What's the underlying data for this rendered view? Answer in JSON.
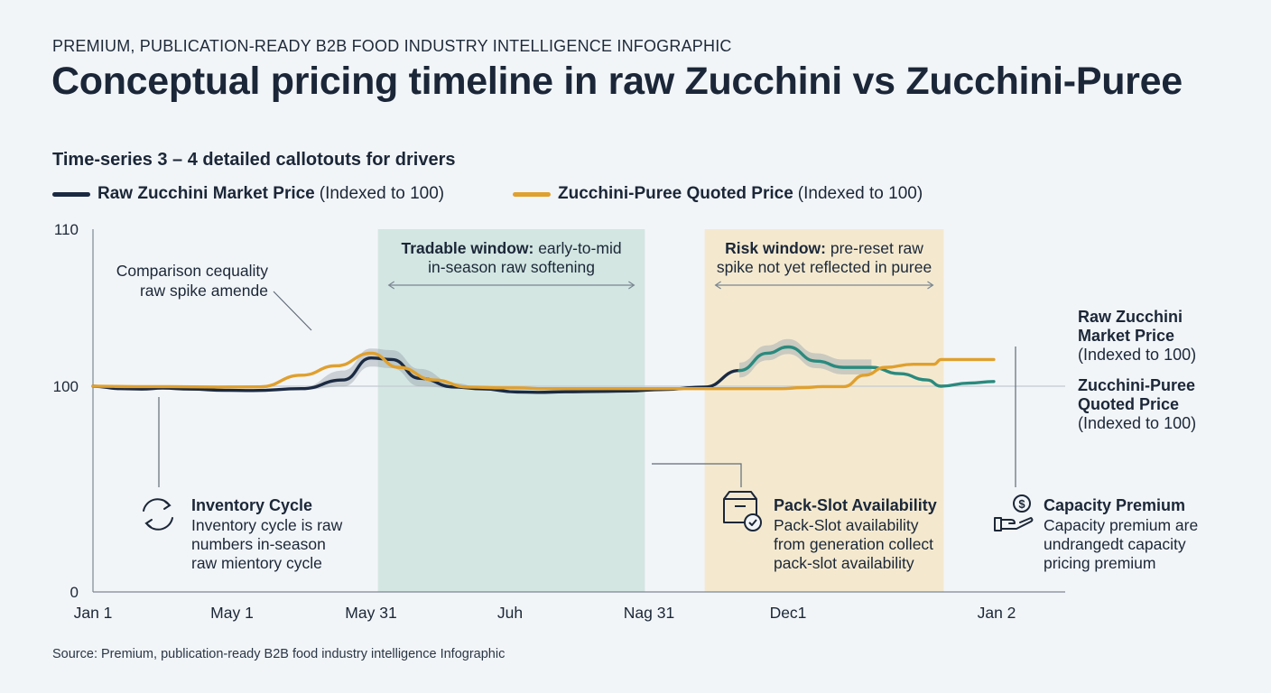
{
  "kicker": "PREMIUM, PUBLICATION-READY B2B FOOD INDUSTRY INTELLIGENCE INFOGRAPHIC",
  "title": "Conceptual pricing timeline in raw Zucchini vs Zucchini-Puree",
  "subtitle": "Time-series 3 – 4 detailed callotouts for drivers",
  "source": "Source: Premium, publication-ready B2B food industry intelligence Infographic",
  "colors": {
    "raw": "#1b2a42",
    "puree": "#e0a02e",
    "raw_teal": "#2a8a7e",
    "band": "#9aa5ae",
    "tradable": "#d3e6e2",
    "risk": "#f4e9cf",
    "icon": "#1b2738"
  },
  "chart_data": {
    "type": "line",
    "x": [
      "Jan 1",
      "May 1",
      "May 31",
      "Juh",
      "Nag 31",
      "Dec1",
      "Jan 2"
    ],
    "x_ticks": [
      "Jan 1",
      "May 1",
      "May 31",
      "Juh",
      "Nag 31",
      "Dec1",
      "Jan 2"
    ],
    "y_ticks": [
      0,
      100,
      110
    ],
    "ylim": [
      0,
      110
    ],
    "reference_line": 100,
    "series": [
      {
        "name": "Raw Zucchini Market Price",
        "legend_note": "(Indexed to 100)",
        "color_key": "raw",
        "values": [
          [
            0.0,
            100
          ],
          [
            0.2,
            98.8
          ],
          [
            0.35,
            98.6
          ],
          [
            0.5,
            99.1
          ],
          [
            0.7,
            98.6
          ],
          [
            0.95,
            98
          ],
          [
            1.15,
            97.9
          ],
          [
            1.5,
            98.8
          ],
          [
            1.8,
            100.4
          ],
          [
            2.0,
            101.8
          ],
          [
            2.15,
            101.7
          ],
          [
            2.35,
            100.5
          ],
          [
            2.6,
            99.6
          ],
          [
            2.8,
            98.7
          ],
          [
            3.05,
            97.2
          ],
          [
            3.2,
            97
          ],
          [
            3.4,
            97.3
          ],
          [
            3.7,
            97.5
          ],
          [
            3.85,
            97.7
          ],
          [
            4.1,
            98.4
          ],
          [
            4.4,
            99.6
          ],
          [
            4.65,
            101
          ],
          [
            4.85,
            102.1
          ],
          [
            5.0,
            102.5
          ],
          [
            5.2,
            101.6
          ],
          [
            5.4,
            101.2
          ],
          [
            5.6,
            101.2
          ],
          [
            5.8,
            100.8
          ],
          [
            6.0,
            100.4
          ],
          [
            6.1,
            100
          ],
          [
            6.3,
            100.2
          ],
          [
            6.48,
            100.3
          ]
        ]
      },
      {
        "name": "Zucchini-Puree Quoted Price",
        "legend_note": "(Indexed to 100)",
        "color_key": "puree",
        "values": [
          [
            0.0,
            100
          ],
          [
            0.3,
            99.8
          ],
          [
            0.55,
            99.8
          ],
          [
            0.9,
            99.6
          ],
          [
            1.2,
            99.7
          ],
          [
            1.5,
            100.7
          ],
          [
            1.75,
            101.3
          ],
          [
            2.0,
            102.1
          ],
          [
            2.2,
            101.2
          ],
          [
            2.45,
            100.4
          ],
          [
            2.7,
            99.6
          ],
          [
            2.95,
            99.2
          ],
          [
            3.05,
            99.2
          ],
          [
            3.25,
            98.8
          ],
          [
            3.45,
            98.8
          ],
          [
            3.8,
            98.8
          ],
          [
            4.1,
            98.8
          ],
          [
            4.5,
            98.8
          ],
          [
            4.95,
            98.8
          ],
          [
            5.1,
            99.3
          ],
          [
            5.25,
            99.8
          ],
          [
            5.4,
            99.8
          ],
          [
            5.55,
            100.7
          ],
          [
            5.7,
            101.2
          ],
          [
            5.9,
            101.4
          ],
          [
            6.05,
            101.4
          ],
          [
            6.1,
            101.7
          ],
          [
            6.3,
            101.7
          ],
          [
            6.48,
            101.7
          ]
        ]
      }
    ],
    "shaded_windows": [
      {
        "label_bold": "Tradable window:",
        "label_text": " early-to-mid",
        "label_line2": "in-season raw softening",
        "x_range": [
          2.05,
          3.97
        ],
        "color_key": "tradable"
      },
      {
        "label_bold": "Risk window:",
        "label_text": " pre-reset raw",
        "label_line2": "spike not yet reflected in puree",
        "x_range": [
          4.4,
          6.12
        ],
        "color_key": "risk"
      }
    ],
    "right_labels": [
      {
        "line1": "Raw Zucchini",
        "line2": "Market Price",
        "line3": "(Indexed to 100)"
      },
      {
        "line1": "Zucchini-Puree",
        "line2": "Quoted Price",
        "line3": "(Indexed to 100)"
      }
    ],
    "annotations": [
      {
        "line1": "Comparison cequality",
        "line2": "raw spike amende"
      }
    ],
    "callouts": [
      {
        "icon": "cycle-arrows-icon",
        "title": "Inventory Cycle",
        "lines": [
          "Inventory cycle is raw",
          "numbers in-season",
          "raw mientory cycle"
        ]
      },
      {
        "icon": "box-check-icon",
        "title": "Pack-Slot Availability",
        "lines": [
          "Pack-Slot availability",
          "from generation collect",
          "pack-slot availability"
        ]
      },
      {
        "icon": "hand-coin-icon",
        "title": "Capacity Premium",
        "lines": [
          "Capacity premium are",
          "undrangedt capacity",
          "pricing premium"
        ]
      }
    ]
  }
}
